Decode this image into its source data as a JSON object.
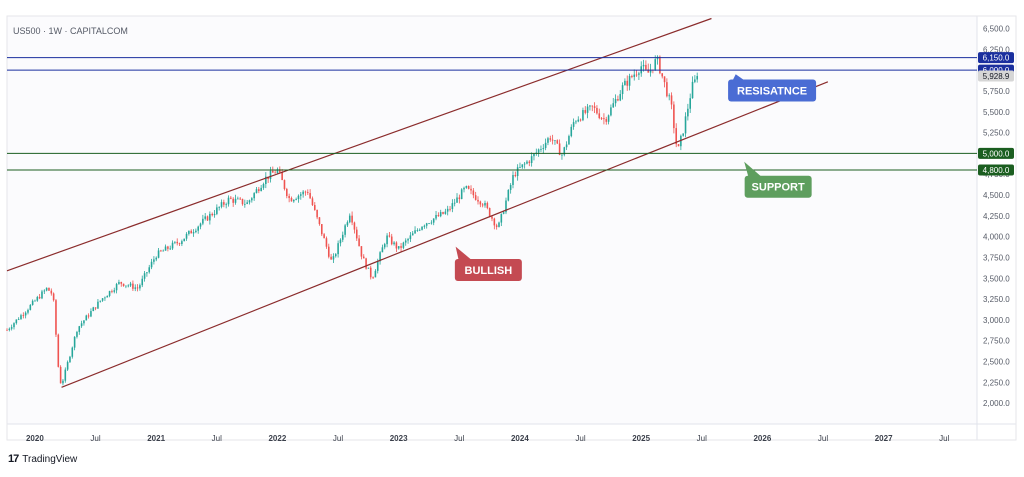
{
  "header": {
    "symbol_label": "US500 · 1W · CAPITALCOM"
  },
  "footer": {
    "brand_mark": "17",
    "brand_name": "TradingView"
  },
  "colors": {
    "up": "#26a69a",
    "down": "#ef5350",
    "channel": "#8b2c2c",
    "resistance": "#1a2f9e",
    "support": "#1b5e20",
    "resist_callout": "#4a6cd4",
    "support_callout": "#5e9e5e",
    "bullish_callout": "#c44a52",
    "price_badge": "#d6d6d6"
  },
  "chart_data": {
    "type": "candlestick",
    "title": "US500 · 1W · CAPITALCOM",
    "ylim": [
      1750,
      6650
    ],
    "xlim": [
      2019.77,
      2027.77
    ],
    "y_ticks": [
      "2,000.0",
      "2,250.0",
      "2,500.0",
      "2,750.0",
      "3,000.0",
      "3,250.0",
      "3,500.0",
      "3,750.0",
      "4,000.0",
      "4,250.0",
      "4,500.0",
      "4,750.0",
      "5,250.0",
      "5,500.0",
      "5,750.0",
      "6,250.0",
      "6,500.0"
    ],
    "x_ticks": [
      {
        "label": "2020",
        "t": 2020.0
      },
      {
        "label": "Jul",
        "t": 2020.5
      },
      {
        "label": "2021",
        "t": 2021.0
      },
      {
        "label": "Jul",
        "t": 2021.5
      },
      {
        "label": "2022",
        "t": 2022.0
      },
      {
        "label": "Jul",
        "t": 2022.5
      },
      {
        "label": "2023",
        "t": 2023.0
      },
      {
        "label": "Jul",
        "t": 2023.5
      },
      {
        "label": "2024",
        "t": 2024.0
      },
      {
        "label": "Jul",
        "t": 2024.5
      },
      {
        "label": "2025",
        "t": 2025.0
      },
      {
        "label": "Jul",
        "t": 2025.5
      },
      {
        "label": "2026",
        "t": 2026.0
      },
      {
        "label": "Jul",
        "t": 2026.5
      },
      {
        "label": "2027",
        "t": 2027.0
      },
      {
        "label": "Jul",
        "t": 2027.5
      }
    ],
    "price_path": [
      [
        2019.77,
        2880
      ],
      [
        2019.95,
        3150
      ],
      [
        2020.1,
        3380
      ],
      [
        2020.15,
        3300
      ],
      [
        2020.2,
        2300
      ],
      [
        2020.22,
        2220
      ],
      [
        2020.35,
        2900
      ],
      [
        2020.55,
        3250
      ],
      [
        2020.7,
        3450
      ],
      [
        2020.85,
        3380
      ],
      [
        2021.0,
        3780
      ],
      [
        2021.2,
        3950
      ],
      [
        2021.4,
        4200
      ],
      [
        2021.6,
        4450
      ],
      [
        2021.75,
        4400
      ],
      [
        2021.9,
        4700
      ],
      [
        2022.0,
        4800
      ],
      [
        2022.1,
        4450
      ],
      [
        2022.25,
        4550
      ],
      [
        2022.4,
        3900
      ],
      [
        2022.45,
        3680
      ],
      [
        2022.6,
        4300
      ],
      [
        2022.7,
        3750
      ],
      [
        2022.78,
        3500
      ],
      [
        2022.9,
        4000
      ],
      [
        2023.0,
        3850
      ],
      [
        2023.2,
        4150
      ],
      [
        2023.4,
        4300
      ],
      [
        2023.55,
        4580
      ],
      [
        2023.7,
        4400
      ],
      [
        2023.82,
        4100
      ],
      [
        2023.95,
        4750
      ],
      [
        2024.1,
        4950
      ],
      [
        2024.25,
        5200
      ],
      [
        2024.35,
        4980
      ],
      [
        2024.45,
        5400
      ],
      [
        2024.6,
        5550
      ],
      [
        2024.7,
        5400
      ],
      [
        2024.85,
        5800
      ],
      [
        2025.0,
        6050
      ],
      [
        2025.05,
        5950
      ],
      [
        2025.13,
        6130
      ],
      [
        2025.2,
        5800
      ],
      [
        2025.25,
        5550
      ],
      [
        2025.3,
        5000
      ],
      [
        2025.35,
        5300
      ],
      [
        2025.42,
        5800
      ],
      [
        2025.47,
        5928.9
      ]
    ],
    "channel_upper": {
      "start": [
        2019.77,
        3590
      ],
      "end": [
        2025.58,
        6620
      ]
    },
    "channel_lower": {
      "start": [
        2020.22,
        2190
      ],
      "end": [
        2026.54,
        5860
      ]
    },
    "horizontal_levels": [
      {
        "value": 6150,
        "label": "6,150.0",
        "kind": "resistance"
      },
      {
        "value": 6000,
        "label": "6,000.0",
        "kind": "resistance"
      },
      {
        "value": 5000,
        "label": "5,000.0",
        "kind": "support"
      },
      {
        "value": 4800,
        "label": "4,800.0",
        "kind": "support"
      }
    ],
    "last_price": {
      "value": 5928.9,
      "label": "5,928.9"
    },
    "annotations": [
      {
        "text": "RESISATNCE",
        "kind": "resistance",
        "anchor": [
          2025.78,
          5950
        ],
        "box_center": [
          2026.08,
          5755
        ]
      },
      {
        "text": "SUPPORT",
        "kind": "support",
        "anchor": [
          2025.85,
          4900
        ],
        "box_center": [
          2026.13,
          4600
        ]
      },
      {
        "text": "BULLISH",
        "kind": "bullish",
        "anchor": [
          2023.47,
          3880
        ],
        "box_center": [
          2023.74,
          3600
        ]
      }
    ]
  }
}
